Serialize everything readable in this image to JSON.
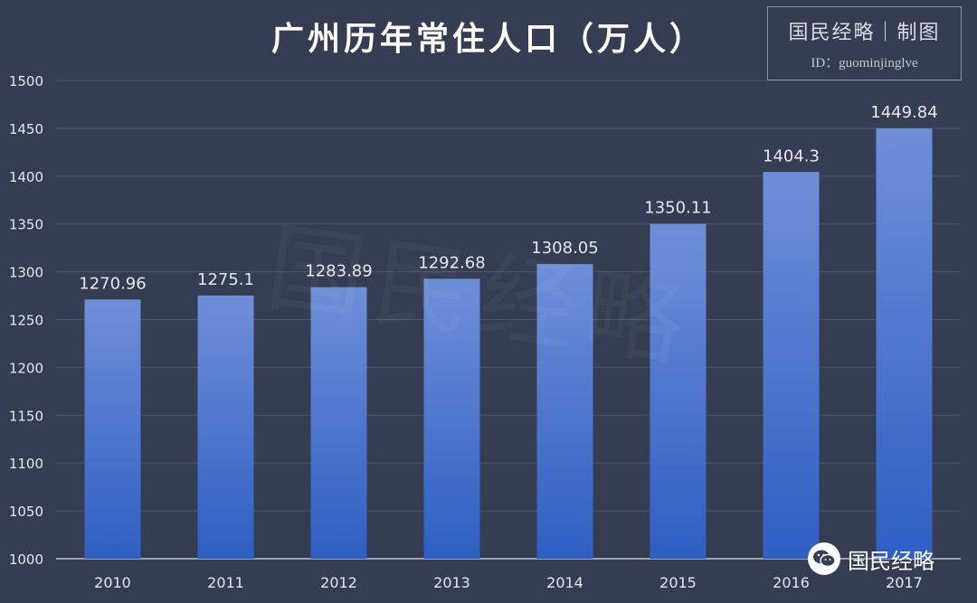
{
  "title": "广州历年常住人口（万人）",
  "brand": {
    "title": "国民经略｜制图",
    "id_line": "ID：guominjinglve",
    "watermark": "国民经略",
    "wechat_label": "国民经略"
  },
  "colors": {
    "background": "#343d51",
    "bar_top": "#6f8fd8",
    "bar_bottom": "#2f5ec3",
    "grid": "#4c5568",
    "text": "#e4e7ee"
  },
  "chart_data": {
    "type": "bar",
    "title": "广州历年常住人口（万人）",
    "xlabel": "",
    "ylabel": "",
    "categories": [
      "2010",
      "2011",
      "2012",
      "2013",
      "2014",
      "2015",
      "2016",
      "2017"
    ],
    "values": [
      1270.96,
      1275.1,
      1283.89,
      1292.68,
      1308.05,
      1350.11,
      1404.3,
      1449.84
    ],
    "value_labels": [
      "1270.96",
      "1275.1",
      "1283.89",
      "1292.68",
      "1308.05",
      "1350.11",
      "1404.3",
      "1449.84"
    ],
    "ylim": [
      1000,
      1500
    ],
    "yticks": [
      1000,
      1050,
      1100,
      1150,
      1200,
      1250,
      1300,
      1350,
      1400,
      1450,
      1500
    ],
    "grid": true,
    "legend": "none"
  }
}
